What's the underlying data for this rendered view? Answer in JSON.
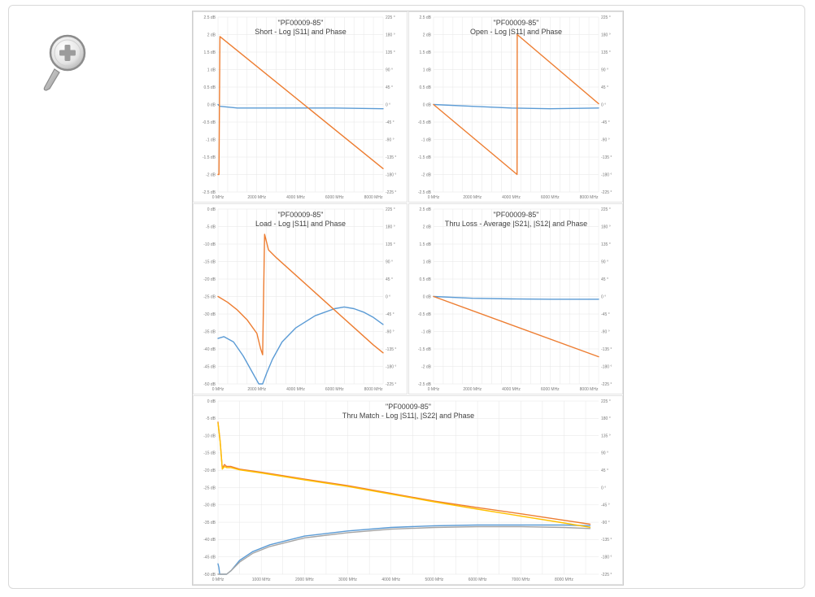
{
  "zoom_button": {
    "icon": "zoom-in-icon"
  },
  "colors": {
    "magnitude": "#5b9bd5",
    "phase": "#ed7d31",
    "phase2": "#ffc000",
    "grid": "#e6e6e6"
  },
  "chart_data": [
    {
      "type": "line",
      "title": "\"PF00009-85\"",
      "subtitle": "Short - Log |S11| and Phase",
      "ylim": [
        -2.5,
        2.5
      ],
      "y2lim": [
        -225,
        225
      ],
      "xlim": [
        0,
        8500
      ],
      "x_ticks": [
        "0 MHz",
        "2000 MHz",
        "4000 MHz",
        "6000 MHz",
        "8000 MHz"
      ],
      "y_ticks": [
        "2.5 dB",
        "2 dB",
        "1.5 dB",
        "1 dB",
        "0.5 dB",
        "0 dB",
        "-0.5 dB",
        "-1 dB",
        "-1.5 dB",
        "-2 dB",
        "-2.5 dB"
      ],
      "y2_ticks": [
        "225 °",
        "180 °",
        "135 °",
        "90 °",
        "45 °",
        "0 °",
        "-45 °",
        "-90 °",
        "-135 °",
        "-180 °",
        "-225 °"
      ],
      "series": [
        {
          "axis": "y",
          "color": "#5b9bd5",
          "x": [
            0,
            100,
            1000,
            3000,
            6000,
            8500
          ],
          "y": [
            0,
            -0.05,
            -0.1,
            -0.1,
            -0.1,
            -0.12
          ]
        },
        {
          "axis": "y2",
          "color": "#ed7d31",
          "x": [
            0,
            50,
            100,
            8500
          ],
          "y": [
            -180,
            -180,
            175,
            -165
          ]
        }
      ]
    },
    {
      "type": "line",
      "title": "\"PF00009-85\"",
      "subtitle": "Open - Log |S11| and Phase",
      "ylim": [
        -2.5,
        2.5
      ],
      "y2lim": [
        -225,
        225
      ],
      "xlim": [
        0,
        8500
      ],
      "x_ticks": [
        "0 MHz",
        "2000 MHz",
        "4000 MHz",
        "6000 MHz",
        "8000 MHz"
      ],
      "y_ticks": [
        "2.5 dB",
        "2 dB",
        "1.5 dB",
        "1 dB",
        "0.5 dB",
        "0 dB",
        "-0.5 dB",
        "-1 dB",
        "-1.5 dB",
        "-2 dB",
        "-2.5 dB"
      ],
      "y2_ticks": [
        "225 °",
        "180 °",
        "135 °",
        "90 °",
        "45 °",
        "0 °",
        "-45 °",
        "-90 °",
        "-135 °",
        "-180 °",
        "-225 °"
      ],
      "series": [
        {
          "axis": "y",
          "color": "#5b9bd5",
          "x": [
            0,
            2000,
            4000,
            6000,
            8500
          ],
          "y": [
            0,
            -0.05,
            -0.1,
            -0.12,
            -0.1
          ]
        },
        {
          "axis": "y2",
          "color": "#ed7d31",
          "x": [
            0,
            4300,
            4310,
            8500
          ],
          "y": [
            0,
            -180,
            180,
            2
          ]
        }
      ]
    },
    {
      "type": "line",
      "title": "\"PF00009-85\"",
      "subtitle": "Load - Log |S11| and Phase",
      "ylim": [
        -50,
        0
      ],
      "y2lim": [
        -225,
        225
      ],
      "xlim": [
        0,
        8500
      ],
      "x_ticks": [
        "0 MHz",
        "2000 MHz",
        "4000 MHz",
        "6000 MHz",
        "8000 MHz"
      ],
      "y_ticks": [
        "0 dB",
        "-5 dB",
        "-10 dB",
        "-15 dB",
        "-20 dB",
        "-25 dB",
        "-30 dB",
        "-35 dB",
        "-40 dB",
        "-45 dB",
        "-50 dB"
      ],
      "y2_ticks": [
        "225 °",
        "180 °",
        "135 °",
        "90 °",
        "45 °",
        "0 °",
        "-45 °",
        "-90 °",
        "-135 °",
        "-180 °",
        "-225 °"
      ],
      "series": [
        {
          "axis": "y",
          "color": "#5b9bd5",
          "x": [
            0,
            300,
            800,
            1300,
            1800,
            2100,
            2300,
            2500,
            2800,
            3300,
            4000,
            5000,
            6000,
            6500,
            7000,
            7500,
            8000,
            8500
          ],
          "y": [
            -37,
            -36.5,
            -38,
            -42,
            -47,
            -50,
            -50,
            -47,
            -43,
            -38,
            -34,
            -30.5,
            -28.5,
            -28,
            -28.5,
            -29.5,
            -31,
            -33
          ]
        },
        {
          "axis": "y2",
          "color": "#ed7d31",
          "x": [
            0,
            500,
            1000,
            1500,
            2000,
            2200,
            2300,
            2400,
            2600,
            3000,
            4000,
            5000,
            6000,
            7000,
            8000,
            8500
          ],
          "y": [
            0,
            -15,
            -35,
            -60,
            -95,
            -135,
            -150,
            160,
            120,
            100,
            55,
            10,
            -35,
            -80,
            -125,
            -145
          ]
        }
      ]
    },
    {
      "type": "line",
      "title": "\"PF00009-85\"",
      "subtitle": "Thru Loss - Average |S21|, |S12| and Phase",
      "ylim": [
        -2.5,
        2.5
      ],
      "y2lim": [
        -225,
        225
      ],
      "xlim": [
        0,
        8500
      ],
      "x_ticks": [
        "0 MHz",
        "2000 MHz",
        "4000 MHz",
        "6000 MHz",
        "8000 MHz"
      ],
      "y_ticks": [
        "2.5 dB",
        "2 dB",
        "1.5 dB",
        "1 dB",
        "0.5 dB",
        "0 dB",
        "-0.5 dB",
        "-1 dB",
        "-1.5 dB",
        "-2 dB",
        "-2.5 dB"
      ],
      "y2_ticks": [
        "225 °",
        "180 °",
        "135 °",
        "90 °",
        "45 °",
        "0 °",
        "-45 °",
        "-90 °",
        "-135 °",
        "-180 °",
        "-225 °"
      ],
      "series": [
        {
          "axis": "y",
          "color": "#5b9bd5",
          "x": [
            0,
            2000,
            4000,
            6000,
            8500
          ],
          "y": [
            0,
            -0.05,
            -0.07,
            -0.08,
            -0.08
          ]
        },
        {
          "axis": "y2",
          "color": "#ed7d31",
          "x": [
            0,
            8500
          ],
          "y": [
            0,
            -155
          ]
        }
      ]
    },
    {
      "type": "line",
      "title": "\"PF00009-85\"",
      "subtitle": "Thru Match - Log |S11|, |S22| and Phase",
      "ylim": [
        -50,
        0
      ],
      "y2lim": [
        -225,
        225
      ],
      "xlim": [
        0,
        8800
      ],
      "x_ticks": [
        "0 MHz",
        "1000 MHz",
        "2000 MHz",
        "3000 MHz",
        "4000 MHz",
        "5000 MHz",
        "6000 MHz",
        "7000 MHz",
        "8000 MHz"
      ],
      "y_ticks": [
        "0 dB",
        "-5 dB",
        "-10 dB",
        "-15 dB",
        "-20 dB",
        "-25 dB",
        "-30 dB",
        "-35 dB",
        "-40 dB",
        "-45 dB",
        "-50 dB"
      ],
      "y2_ticks": [
        "225 °",
        "180 °",
        "135 °",
        "90 °",
        "45 °",
        "0 °",
        "-45 °",
        "-90 °",
        "-135 °",
        "-180 °",
        "-225 °"
      ],
      "series": [
        {
          "axis": "y",
          "color": "#5b9bd5",
          "x": [
            0,
            20,
            40,
            60,
            100,
            150,
            200,
            300,
            500,
            800,
            1200,
            2000,
            3000,
            4000,
            5000,
            6000,
            7000,
            8000,
            8600
          ],
          "y": [
            -47,
            -48,
            -50,
            -50,
            -50,
            -50,
            -50,
            -49,
            -46,
            -43.5,
            -41.5,
            -39,
            -37.5,
            -36.5,
            -36,
            -35.8,
            -35.8,
            -35.8,
            -36
          ]
        },
        {
          "axis": "y",
          "color": "#a5a5a5",
          "x": [
            0,
            60,
            100,
            200,
            300,
            500,
            800,
            1200,
            2000,
            3000,
            4000,
            5000,
            6000,
            7000,
            8000,
            8600
          ],
          "y": [
            -50,
            -50,
            -50,
            -50,
            -49,
            -46.5,
            -44,
            -42,
            -39.5,
            -38,
            -37,
            -36.5,
            -36.3,
            -36.3,
            -36.5,
            -36.8
          ]
        },
        {
          "axis": "y2",
          "color": "#ed7d31",
          "x": [
            0,
            50,
            100,
            150,
            200,
            300,
            500,
            1000,
            2000,
            3000,
            4000,
            5000,
            6000,
            7000,
            8000,
            8600
          ],
          "y": [
            170,
            120,
            50,
            60,
            55,
            55,
            48,
            40,
            22,
            5,
            -15,
            -35,
            -52,
            -68,
            -85,
            -95
          ]
        },
        {
          "axis": "y2",
          "color": "#ffc000",
          "x": [
            0,
            50,
            100,
            150,
            200,
            300,
            500,
            1000,
            2000,
            3000,
            4000,
            5000,
            6000,
            7000,
            8000,
            8600
          ],
          "y": [
            168,
            118,
            48,
            55,
            52,
            52,
            46,
            38,
            20,
            3,
            -17,
            -37,
            -56,
            -74,
            -92,
            -103
          ]
        }
      ]
    }
  ]
}
